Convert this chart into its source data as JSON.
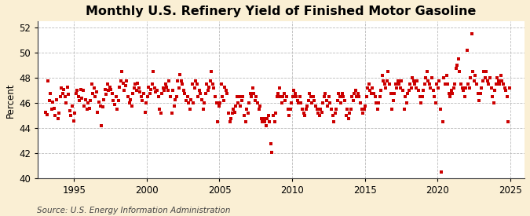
{
  "title": "Monthly U.S. Refinery Yield of Finished Motor Gasoline",
  "ylabel": "Percent",
  "source": "Source: U.S. Energy Information Administration",
  "figure_bg_color": "#faefd4",
  "plot_bg_color": "#ffffff",
  "marker_color": "#cc0000",
  "marker": "s",
  "marker_size": 9,
  "ylim": [
    40,
    52.5
  ],
  "yticks": [
    40,
    42,
    44,
    46,
    48,
    50,
    52
  ],
  "grid_color": "#bbbbbb",
  "title_fontsize": 11.5,
  "label_fontsize": 8.5,
  "source_fontsize": 7.5,
  "xlim_start": [
    1992,
    7,
    1
  ],
  "xlim_end": [
    2026,
    1,
    1
  ],
  "data": [
    [
      1993,
      1,
      45.3
    ],
    [
      1993,
      2,
      45.1
    ],
    [
      1993,
      3,
      47.8
    ],
    [
      1993,
      4,
      46.2
    ],
    [
      1993,
      5,
      46.8
    ],
    [
      1993,
      6,
      45.5
    ],
    [
      1993,
      7,
      46.1
    ],
    [
      1993,
      8,
      45.6
    ],
    [
      1993,
      9,
      45.0
    ],
    [
      1993,
      10,
      46.3
    ],
    [
      1993,
      11,
      44.8
    ],
    [
      1993,
      12,
      45.2
    ],
    [
      1994,
      1,
      46.5
    ],
    [
      1994,
      2,
      47.2
    ],
    [
      1994,
      3,
      46.8
    ],
    [
      1994,
      4,
      47.1
    ],
    [
      1994,
      5,
      46.5
    ],
    [
      1994,
      6,
      46.0
    ],
    [
      1994,
      7,
      47.3
    ],
    [
      1994,
      8,
      46.7
    ],
    [
      1994,
      9,
      45.4
    ],
    [
      1994,
      10,
      45.0
    ],
    [
      1994,
      11,
      45.8
    ],
    [
      1994,
      12,
      44.6
    ],
    [
      1995,
      1,
      45.2
    ],
    [
      1995,
      2,
      46.8
    ],
    [
      1995,
      3,
      47.0
    ],
    [
      1995,
      4,
      46.5
    ],
    [
      1995,
      5,
      46.2
    ],
    [
      1995,
      6,
      47.1
    ],
    [
      1995,
      7,
      46.4
    ],
    [
      1995,
      8,
      47.0
    ],
    [
      1995,
      9,
      45.8
    ],
    [
      1995,
      10,
      46.3
    ],
    [
      1995,
      11,
      45.5
    ],
    [
      1995,
      12,
      46.0
    ],
    [
      1996,
      1,
      45.6
    ],
    [
      1996,
      2,
      46.2
    ],
    [
      1996,
      3,
      47.5
    ],
    [
      1996,
      4,
      46.8
    ],
    [
      1996,
      5,
      47.2
    ],
    [
      1996,
      6,
      46.5
    ],
    [
      1996,
      7,
      46.9
    ],
    [
      1996,
      8,
      45.3
    ],
    [
      1996,
      9,
      46.1
    ],
    [
      1996,
      10,
      45.8
    ],
    [
      1996,
      11,
      44.2
    ],
    [
      1996,
      12,
      45.7
    ],
    [
      1997,
      1,
      46.3
    ],
    [
      1997,
      2,
      47.1
    ],
    [
      1997,
      3,
      46.7
    ],
    [
      1997,
      4,
      47.5
    ],
    [
      1997,
      5,
      47.0
    ],
    [
      1997,
      6,
      47.3
    ],
    [
      1997,
      7,
      47.1
    ],
    [
      1997,
      8,
      46.8
    ],
    [
      1997,
      9,
      46.2
    ],
    [
      1997,
      10,
      45.9
    ],
    [
      1997,
      11,
      46.5
    ],
    [
      1997,
      12,
      45.5
    ],
    [
      1998,
      1,
      46.2
    ],
    [
      1998,
      2,
      47.3
    ],
    [
      1998,
      3,
      47.8
    ],
    [
      1998,
      4,
      48.5
    ],
    [
      1998,
      5,
      47.6
    ],
    [
      1998,
      6,
      47.0
    ],
    [
      1998,
      7,
      47.4
    ],
    [
      1998,
      8,
      47.8
    ],
    [
      1998,
      9,
      46.5
    ],
    [
      1998,
      10,
      46.0
    ],
    [
      1998,
      11,
      46.3
    ],
    [
      1998,
      12,
      45.8
    ],
    [
      1999,
      1,
      46.8
    ],
    [
      1999,
      2,
      47.2
    ],
    [
      1999,
      3,
      47.5
    ],
    [
      1999,
      4,
      47.0
    ],
    [
      1999,
      5,
      47.6
    ],
    [
      1999,
      6,
      47.2
    ],
    [
      1999,
      7,
      46.9
    ],
    [
      1999,
      8,
      46.5
    ],
    [
      1999,
      9,
      46.2
    ],
    [
      1999,
      10,
      46.8
    ],
    [
      1999,
      11,
      45.3
    ],
    [
      1999,
      12,
      46.0
    ],
    [
      2000,
      1,
      46.5
    ],
    [
      2000,
      2,
      47.3
    ],
    [
      2000,
      3,
      46.8
    ],
    [
      2000,
      4,
      47.1
    ],
    [
      2000,
      5,
      47.5
    ],
    [
      2000,
      6,
      48.5
    ],
    [
      2000,
      7,
      47.2
    ],
    [
      2000,
      8,
      46.9
    ],
    [
      2000,
      9,
      47.0
    ],
    [
      2000,
      10,
      46.5
    ],
    [
      2000,
      11,
      45.5
    ],
    [
      2000,
      12,
      45.2
    ],
    [
      2001,
      1,
      46.8
    ],
    [
      2001,
      2,
      47.2
    ],
    [
      2001,
      3,
      47.0
    ],
    [
      2001,
      4,
      47.5
    ],
    [
      2001,
      5,
      47.3
    ],
    [
      2001,
      6,
      47.0
    ],
    [
      2001,
      7,
      47.8
    ],
    [
      2001,
      8,
      46.5
    ],
    [
      2001,
      9,
      45.2
    ],
    [
      2001,
      10,
      47.0
    ],
    [
      2001,
      11,
      45.8
    ],
    [
      2001,
      12,
      46.3
    ],
    [
      2002,
      1,
      46.5
    ],
    [
      2002,
      2,
      47.8
    ],
    [
      2002,
      3,
      47.2
    ],
    [
      2002,
      4,
      48.3
    ],
    [
      2002,
      5,
      47.8
    ],
    [
      2002,
      6,
      47.5
    ],
    [
      2002,
      7,
      47.0
    ],
    [
      2002,
      8,
      46.8
    ],
    [
      2002,
      9,
      46.2
    ],
    [
      2002,
      10,
      46.5
    ],
    [
      2002,
      11,
      46.0
    ],
    [
      2002,
      12,
      45.5
    ],
    [
      2003,
      1,
      46.3
    ],
    [
      2003,
      2,
      47.5
    ],
    [
      2003,
      3,
      46.0
    ],
    [
      2003,
      4,
      47.2
    ],
    [
      2003,
      5,
      47.8
    ],
    [
      2003,
      6,
      47.5
    ],
    [
      2003,
      7,
      46.5
    ],
    [
      2003,
      8,
      47.0
    ],
    [
      2003,
      9,
      46.8
    ],
    [
      2003,
      10,
      46.3
    ],
    [
      2003,
      11,
      45.5
    ],
    [
      2003,
      12,
      46.0
    ],
    [
      2004,
      1,
      46.8
    ],
    [
      2004,
      2,
      47.5
    ],
    [
      2004,
      3,
      47.0
    ],
    [
      2004,
      4,
      47.3
    ],
    [
      2004,
      5,
      47.8
    ],
    [
      2004,
      6,
      48.5
    ],
    [
      2004,
      7,
      47.5
    ],
    [
      2004,
      8,
      47.2
    ],
    [
      2004,
      9,
      46.5
    ],
    [
      2004,
      10,
      46.0
    ],
    [
      2004,
      11,
      44.5
    ],
    [
      2004,
      12,
      45.8
    ],
    [
      2005,
      1,
      46.0
    ],
    [
      2005,
      2,
      47.5
    ],
    [
      2005,
      3,
      46.5
    ],
    [
      2005,
      4,
      46.2
    ],
    [
      2005,
      5,
      47.3
    ],
    [
      2005,
      6,
      47.0
    ],
    [
      2005,
      7,
      46.8
    ],
    [
      2005,
      8,
      45.2
    ],
    [
      2005,
      9,
      44.5
    ],
    [
      2005,
      10,
      44.8
    ],
    [
      2005,
      11,
      45.2
    ],
    [
      2005,
      12,
      45.5
    ],
    [
      2006,
      1,
      45.3
    ],
    [
      2006,
      2,
      45.8
    ],
    [
      2006,
      3,
      46.5
    ],
    [
      2006,
      4,
      46.0
    ],
    [
      2006,
      5,
      46.5
    ],
    [
      2006,
      6,
      45.8
    ],
    [
      2006,
      7,
      46.2
    ],
    [
      2006,
      8,
      46.5
    ],
    [
      2006,
      9,
      45.0
    ],
    [
      2006,
      10,
      44.5
    ],
    [
      2006,
      11,
      45.5
    ],
    [
      2006,
      12,
      45.2
    ],
    [
      2007,
      1,
      46.0
    ],
    [
      2007,
      2,
      46.8
    ],
    [
      2007,
      3,
      46.5
    ],
    [
      2007,
      4,
      47.2
    ],
    [
      2007,
      5,
      46.8
    ],
    [
      2007,
      6,
      46.2
    ],
    [
      2007,
      7,
      46.5
    ],
    [
      2007,
      8,
      46.0
    ],
    [
      2007,
      9,
      45.5
    ],
    [
      2007,
      10,
      45.8
    ],
    [
      2007,
      11,
      44.8
    ],
    [
      2007,
      12,
      44.5
    ],
    [
      2008,
      1,
      44.8
    ],
    [
      2008,
      2,
      44.5
    ],
    [
      2008,
      3,
      44.2
    ],
    [
      2008,
      4,
      44.8
    ],
    [
      2008,
      5,
      45.0
    ],
    [
      2008,
      6,
      44.5
    ],
    [
      2008,
      7,
      42.8
    ],
    [
      2008,
      8,
      42.1
    ],
    [
      2008,
      9,
      45.0
    ],
    [
      2008,
      10,
      44.5
    ],
    [
      2008,
      11,
      45.2
    ],
    [
      2008,
      12,
      46.5
    ],
    [
      2009,
      1,
      46.8
    ],
    [
      2009,
      2,
      47.2
    ],
    [
      2009,
      3,
      46.5
    ],
    [
      2009,
      4,
      46.0
    ],
    [
      2009,
      5,
      46.5
    ],
    [
      2009,
      6,
      46.8
    ],
    [
      2009,
      7,
      46.2
    ],
    [
      2009,
      8,
      46.5
    ],
    [
      2009,
      9,
      45.5
    ],
    [
      2009,
      10,
      45.0
    ],
    [
      2009,
      11,
      45.5
    ],
    [
      2009,
      12,
      46.0
    ],
    [
      2010,
      1,
      46.5
    ],
    [
      2010,
      2,
      47.0
    ],
    [
      2010,
      3,
      46.8
    ],
    [
      2010,
      4,
      46.5
    ],
    [
      2010,
      5,
      46.2
    ],
    [
      2010,
      6,
      46.0
    ],
    [
      2010,
      7,
      46.5
    ],
    [
      2010,
      8,
      46.0
    ],
    [
      2010,
      9,
      45.5
    ],
    [
      2010,
      10,
      45.2
    ],
    [
      2010,
      11,
      45.0
    ],
    [
      2010,
      12,
      45.5
    ],
    [
      2011,
      1,
      45.8
    ],
    [
      2011,
      2,
      46.2
    ],
    [
      2011,
      3,
      46.8
    ],
    [
      2011,
      4,
      46.5
    ],
    [
      2011,
      5,
      46.0
    ],
    [
      2011,
      6,
      46.5
    ],
    [
      2011,
      7,
      46.2
    ],
    [
      2011,
      8,
      45.8
    ],
    [
      2011,
      9,
      45.5
    ],
    [
      2011,
      10,
      45.2
    ],
    [
      2011,
      11,
      45.0
    ],
    [
      2011,
      12,
      45.5
    ],
    [
      2012,
      1,
      45.3
    ],
    [
      2012,
      2,
      46.0
    ],
    [
      2012,
      3,
      46.5
    ],
    [
      2012,
      4,
      46.8
    ],
    [
      2012,
      5,
      46.2
    ],
    [
      2012,
      6,
      45.8
    ],
    [
      2012,
      7,
      46.5
    ],
    [
      2012,
      8,
      46.0
    ],
    [
      2012,
      9,
      45.5
    ],
    [
      2012,
      10,
      45.0
    ],
    [
      2012,
      11,
      44.5
    ],
    [
      2012,
      12,
      45.2
    ],
    [
      2013,
      1,
      45.5
    ],
    [
      2013,
      2,
      46.2
    ],
    [
      2013,
      3,
      46.8
    ],
    [
      2013,
      4,
      46.5
    ],
    [
      2013,
      5,
      46.0
    ],
    [
      2013,
      6,
      46.8
    ],
    [
      2013,
      7,
      46.5
    ],
    [
      2013,
      8,
      46.2
    ],
    [
      2013,
      9,
      45.0
    ],
    [
      2013,
      10,
      45.5
    ],
    [
      2013,
      11,
      44.8
    ],
    [
      2013,
      12,
      45.2
    ],
    [
      2014,
      1,
      45.5
    ],
    [
      2014,
      2,
      46.5
    ],
    [
      2014,
      3,
      46.2
    ],
    [
      2014,
      4,
      46.8
    ],
    [
      2014,
      5,
      47.0
    ],
    [
      2014,
      6,
      46.5
    ],
    [
      2014,
      7,
      46.8
    ],
    [
      2014,
      8,
      46.5
    ],
    [
      2014,
      9,
      46.0
    ],
    [
      2014,
      10,
      45.5
    ],
    [
      2014,
      11,
      45.2
    ],
    [
      2014,
      12,
      45.5
    ],
    [
      2015,
      1,
      45.8
    ],
    [
      2015,
      2,
      46.5
    ],
    [
      2015,
      3,
      47.2
    ],
    [
      2015,
      4,
      47.5
    ],
    [
      2015,
      5,
      47.0
    ],
    [
      2015,
      6,
      46.8
    ],
    [
      2015,
      7,
      47.2
    ],
    [
      2015,
      8,
      46.8
    ],
    [
      2015,
      9,
      46.5
    ],
    [
      2015,
      10,
      46.0
    ],
    [
      2015,
      11,
      45.5
    ],
    [
      2015,
      12,
      46.0
    ],
    [
      2016,
      1,
      46.5
    ],
    [
      2016,
      2,
      47.0
    ],
    [
      2016,
      3,
      48.2
    ],
    [
      2016,
      4,
      47.8
    ],
    [
      2016,
      5,
      47.5
    ],
    [
      2016,
      6,
      47.2
    ],
    [
      2016,
      7,
      47.8
    ],
    [
      2016,
      8,
      48.5
    ],
    [
      2016,
      9,
      47.5
    ],
    [
      2016,
      10,
      46.8
    ],
    [
      2016,
      11,
      45.5
    ],
    [
      2016,
      12,
      46.2
    ],
    [
      2017,
      1,
      46.8
    ],
    [
      2017,
      2,
      47.5
    ],
    [
      2017,
      3,
      47.2
    ],
    [
      2017,
      4,
      47.8
    ],
    [
      2017,
      5,
      47.5
    ],
    [
      2017,
      6,
      47.2
    ],
    [
      2017,
      7,
      47.8
    ],
    [
      2017,
      8,
      47.0
    ],
    [
      2017,
      9,
      45.5
    ],
    [
      2017,
      10,
      46.5
    ],
    [
      2017,
      11,
      46.0
    ],
    [
      2017,
      12,
      46.8
    ],
    [
      2018,
      1,
      47.0
    ],
    [
      2018,
      2,
      47.5
    ],
    [
      2018,
      3,
      47.2
    ],
    [
      2018,
      4,
      48.0
    ],
    [
      2018,
      5,
      47.8
    ],
    [
      2018,
      6,
      47.5
    ],
    [
      2018,
      7,
      47.2
    ],
    [
      2018,
      8,
      47.8
    ],
    [
      2018,
      9,
      47.0
    ],
    [
      2018,
      10,
      46.5
    ],
    [
      2018,
      11,
      46.0
    ],
    [
      2018,
      12,
      46.5
    ],
    [
      2019,
      1,
      47.0
    ],
    [
      2019,
      2,
      47.5
    ],
    [
      2019,
      3,
      48.0
    ],
    [
      2019,
      4,
      48.5
    ],
    [
      2019,
      5,
      47.8
    ],
    [
      2019,
      6,
      47.5
    ],
    [
      2019,
      7,
      47.2
    ],
    [
      2019,
      8,
      48.0
    ],
    [
      2019,
      9,
      47.0
    ],
    [
      2019,
      10,
      46.5
    ],
    [
      2019,
      11,
      46.0
    ],
    [
      2019,
      12,
      47.5
    ],
    [
      2020,
      1,
      47.2
    ],
    [
      2020,
      2,
      47.8
    ],
    [
      2020,
      3,
      45.5
    ],
    [
      2020,
      4,
      40.5
    ],
    [
      2020,
      5,
      44.5
    ],
    [
      2020,
      6,
      48.0
    ],
    [
      2020,
      7,
      47.5
    ],
    [
      2020,
      8,
      48.2
    ],
    [
      2020,
      9,
      47.5
    ],
    [
      2020,
      10,
      46.8
    ],
    [
      2020,
      11,
      46.5
    ],
    [
      2020,
      12,
      47.0
    ],
    [
      2021,
      1,
      46.8
    ],
    [
      2021,
      2,
      47.2
    ],
    [
      2021,
      3,
      47.5
    ],
    [
      2021,
      4,
      48.8
    ],
    [
      2021,
      5,
      49.0
    ],
    [
      2021,
      6,
      49.5
    ],
    [
      2021,
      7,
      48.5
    ],
    [
      2021,
      8,
      47.5
    ],
    [
      2021,
      9,
      47.2
    ],
    [
      2021,
      10,
      47.0
    ],
    [
      2021,
      11,
      46.5
    ],
    [
      2021,
      12,
      47.2
    ],
    [
      2022,
      1,
      50.2
    ],
    [
      2022,
      2,
      47.5
    ],
    [
      2022,
      3,
      47.2
    ],
    [
      2022,
      4,
      48.0
    ],
    [
      2022,
      5,
      51.5
    ],
    [
      2022,
      6,
      48.5
    ],
    [
      2022,
      7,
      47.8
    ],
    [
      2022,
      8,
      48.2
    ],
    [
      2022,
      9,
      47.5
    ],
    [
      2022,
      10,
      46.8
    ],
    [
      2022,
      11,
      46.2
    ],
    [
      2022,
      12,
      46.8
    ],
    [
      2023,
      1,
      47.2
    ],
    [
      2023,
      2,
      47.8
    ],
    [
      2023,
      3,
      48.5
    ],
    [
      2023,
      4,
      48.0
    ],
    [
      2023,
      5,
      48.5
    ],
    [
      2023,
      6,
      47.8
    ],
    [
      2023,
      7,
      47.5
    ],
    [
      2023,
      8,
      48.0
    ],
    [
      2023,
      9,
      47.2
    ],
    [
      2023,
      10,
      46.5
    ],
    [
      2023,
      11,
      46.0
    ],
    [
      2023,
      12,
      47.0
    ],
    [
      2024,
      1,
      47.5
    ],
    [
      2024,
      2,
      48.0
    ],
    [
      2024,
      3,
      47.8
    ],
    [
      2024,
      4,
      47.5
    ],
    [
      2024,
      5,
      48.2
    ],
    [
      2024,
      6,
      47.8
    ],
    [
      2024,
      7,
      47.5
    ],
    [
      2024,
      8,
      47.2
    ],
    [
      2024,
      9,
      47.0
    ],
    [
      2024,
      10,
      46.5
    ],
    [
      2024,
      11,
      44.5
    ],
    [
      2024,
      12,
      47.2
    ]
  ]
}
